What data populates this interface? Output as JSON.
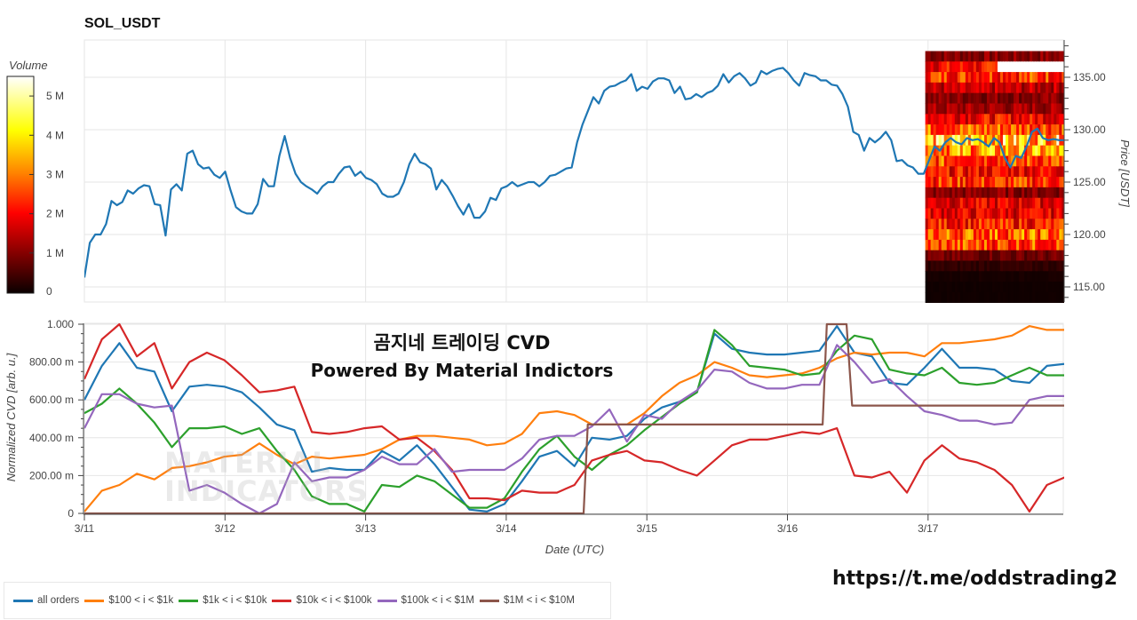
{
  "title": "SOL_USDT",
  "overlay": {
    "line1": "곰지네 트레이딩 CVD",
    "line2": "Powered By Material Indictors"
  },
  "watermark": {
    "line1": "MATERIAL",
    "line2": "INDICATORS"
  },
  "link": "https://t.me/oddstrading2",
  "colors": {
    "all": "#1f77b4",
    "c100": "#ff7f0e",
    "c1k": "#2ca02c",
    "c10k": "#d62728",
    "c100k": "#9467bd",
    "c1m": "#8c564b"
  },
  "chart_data": [
    {
      "type": "line",
      "name": "price",
      "title": "SOL_USDT",
      "ylabel": "Price [USDT]",
      "ylim": [
        113.5,
        139
      ],
      "yticks": [
        "115.00",
        "120.00",
        "125.00",
        "130.00",
        "135.00"
      ],
      "ytick_values": [
        115,
        120,
        125,
        130,
        135
      ],
      "x_range_days": [
        0,
        6.97
      ],
      "prices": [
        115.9,
        119.2,
        120.0,
        120.0,
        121.0,
        123.2,
        122.8,
        123.1,
        124.2,
        123.9,
        124.4,
        124.7,
        124.6,
        122.9,
        122.8,
        119.9,
        124.3,
        124.8,
        124.2,
        127.7,
        128.0,
        126.7,
        126.3,
        126.4,
        125.7,
        125.4,
        126.0,
        124.2,
        122.6,
        122.2,
        122.0,
        122.0,
        122.9,
        125.3,
        124.6,
        124.6,
        127.5,
        129.4,
        127.3,
        125.8,
        125.0,
        124.6,
        124.3,
        123.9,
        124.6,
        125.0,
        125.0,
        125.8,
        126.4,
        126.5,
        125.6,
        126.0,
        125.4,
        125.2,
        124.8,
        123.9,
        123.6,
        123.6,
        123.9,
        125.0,
        126.7,
        127.7,
        126.9,
        126.7,
        126.3,
        124.3,
        125.2,
        124.6,
        123.7,
        122.7,
        121.9,
        122.9,
        121.6,
        121.6,
        122.2,
        123.5,
        123.3,
        124.4,
        124.6,
        125.0,
        124.6,
        124.8,
        125.0,
        125.0,
        124.6,
        125.0,
        125.6,
        125.7,
        126.0,
        126.3,
        126.4,
        128.8,
        130.5,
        131.8,
        133.1,
        132.5,
        133.7,
        134.1,
        134.2,
        134.5,
        134.7,
        135.3,
        133.7,
        134.1,
        133.9,
        134.6,
        134.9,
        134.9,
        134.7,
        133.5,
        134.1,
        132.9,
        133.0,
        133.4,
        133.1,
        133.5,
        133.7,
        134.2,
        135.3,
        134.5,
        135.1,
        135.4,
        134.9,
        134.2,
        134.5,
        135.6,
        135.3,
        135.6,
        135.8,
        135.9,
        135.4,
        134.7,
        134.2,
        135.4,
        135.2,
        135.1,
        134.7,
        134.7,
        134.3,
        134.2,
        133.4,
        132.2,
        129.8,
        129.5,
        128.0,
        129.2,
        128.8,
        129.2,
        129.8,
        129.0,
        127.0,
        127.1,
        126.6,
        126.4,
        125.8,
        125.8,
        127.1,
        128.4,
        128.0,
        128.8,
        129.2,
        128.8,
        128.6,
        129.2,
        129.0,
        129.1,
        128.8,
        128.4,
        129.2,
        128.8,
        127.3,
        126.4,
        127.5,
        127.3,
        128.4,
        129.8,
        130.1,
        129.2,
        129.0,
        129.1,
        129.0,
        129.0
      ]
    },
    {
      "type": "heatmap",
      "name": "volume-profile",
      "colorbar_title": "Volume",
      "colorbar_ticks": [
        "0",
        "1 M",
        "2 M",
        "3 M",
        "4 M",
        "5 M"
      ],
      "colorbar_tick_values": [
        0,
        1,
        2,
        3,
        4,
        5
      ],
      "colorbar_max": 5.5,
      "x_range_days": [
        5.98,
        6.97
      ],
      "row_prices": [
        137,
        136,
        135,
        134,
        133,
        132,
        131,
        130,
        129,
        128,
        127,
        126,
        125,
        124,
        123,
        122,
        121,
        120,
        119,
        118,
        117,
        116,
        115,
        114
      ],
      "row_volumes_m": [
        1.0,
        2.0,
        2.5,
        1.4,
        1.0,
        1.2,
        2.0,
        2.8,
        3.8,
        3.3,
        2.6,
        2.0,
        2.4,
        1.0,
        1.8,
        1.8,
        2.2,
        2.8,
        2.6,
        0.8,
        0.3,
        0.1,
        0.05,
        0.05
      ],
      "hotspot": {
        "price": 136,
        "day_from": 6.5,
        "day_to": 6.97,
        "volume_m": 5.6
      }
    },
    {
      "type": "line",
      "name": "cvd",
      "xlabel": "Date (UTC)",
      "ylabel": "Normalized CVD [arb. u.]",
      "ylim": [
        0,
        1
      ],
      "yticks": [
        "0",
        "200.00 m",
        "400.00 m",
        "600.00 m",
        "800.00 m",
        "1.000"
      ],
      "ytick_values": [
        0,
        0.2,
        0.4,
        0.6,
        0.8,
        1.0
      ],
      "xticks": [
        "3/11",
        "3/12",
        "3/13",
        "3/14",
        "3/15",
        "3/16",
        "3/17"
      ],
      "xtick_days": [
        0,
        1,
        2,
        3,
        4,
        5,
        6
      ],
      "x_range_days": [
        0,
        6.97
      ],
      "legend_position": "bottom-left",
      "series": [
        {
          "name": "all orders",
          "color_key": "all",
          "values": [
            0.6,
            0.78,
            0.9,
            0.77,
            0.75,
            0.54,
            0.67,
            0.68,
            0.67,
            0.64,
            0.56,
            0.47,
            0.44,
            0.22,
            0.24,
            0.23,
            0.23,
            0.33,
            0.28,
            0.36,
            0.26,
            0.14,
            0.02,
            0.01,
            0.05,
            0.17,
            0.3,
            0.33,
            0.25,
            0.4,
            0.39,
            0.41,
            0.5,
            0.56,
            0.59,
            0.64,
            0.95,
            0.87,
            0.85,
            0.84,
            0.84,
            0.85,
            0.86,
            0.99,
            0.85,
            0.83,
            0.69,
            0.68,
            0.77,
            0.87,
            0.77,
            0.77,
            0.76,
            0.7,
            0.69,
            0.78,
            0.79
          ]
        },
        {
          "name": "$100 < i < $1k",
          "color_key": "c100",
          "values": [
            0.01,
            0.12,
            0.15,
            0.21,
            0.18,
            0.24,
            0.25,
            0.27,
            0.3,
            0.31,
            0.37,
            0.31,
            0.26,
            0.3,
            0.29,
            0.3,
            0.31,
            0.34,
            0.39,
            0.41,
            0.41,
            0.4,
            0.39,
            0.36,
            0.37,
            0.42,
            0.53,
            0.54,
            0.52,
            0.47,
            0.47,
            0.47,
            0.53,
            0.62,
            0.69,
            0.73,
            0.8,
            0.77,
            0.73,
            0.72,
            0.73,
            0.74,
            0.77,
            0.82,
            0.85,
            0.84,
            0.85,
            0.85,
            0.83,
            0.9,
            0.9,
            0.91,
            0.92,
            0.94,
            0.99,
            0.97,
            0.97
          ]
        },
        {
          "name": "$1k < i < $10k",
          "color_key": "c1k",
          "values": [
            0.53,
            0.58,
            0.66,
            0.58,
            0.48,
            0.35,
            0.45,
            0.45,
            0.46,
            0.42,
            0.45,
            0.33,
            0.23,
            0.09,
            0.05,
            0.05,
            0.01,
            0.15,
            0.14,
            0.2,
            0.17,
            0.1,
            0.03,
            0.03,
            0.08,
            0.22,
            0.34,
            0.41,
            0.3,
            0.23,
            0.31,
            0.36,
            0.44,
            0.51,
            0.58,
            0.64,
            0.97,
            0.89,
            0.78,
            0.77,
            0.76,
            0.73,
            0.74,
            0.86,
            0.94,
            0.92,
            0.76,
            0.74,
            0.73,
            0.77,
            0.69,
            0.68,
            0.69,
            0.73,
            0.77,
            0.73,
            0.73
          ]
        },
        {
          "name": "$10k < i < $100k",
          "color_key": "c10k",
          "values": [
            0.71,
            0.92,
            1.0,
            0.83,
            0.9,
            0.66,
            0.8,
            0.85,
            0.81,
            0.73,
            0.64,
            0.65,
            0.67,
            0.43,
            0.42,
            0.43,
            0.45,
            0.46,
            0.39,
            0.4,
            0.33,
            0.23,
            0.08,
            0.08,
            0.07,
            0.12,
            0.11,
            0.11,
            0.15,
            0.28,
            0.31,
            0.33,
            0.28,
            0.27,
            0.23,
            0.2,
            0.28,
            0.36,
            0.39,
            0.39,
            0.41,
            0.43,
            0.42,
            0.45,
            0.2,
            0.19,
            0.22,
            0.11,
            0.28,
            0.36,
            0.29,
            0.27,
            0.23,
            0.15,
            0.01,
            0.15,
            0.19
          ]
        },
        {
          "name": "$100k < i < $1M",
          "color_key": "c100k",
          "values": [
            0.45,
            0.63,
            0.63,
            0.58,
            0.56,
            0.57,
            0.12,
            0.15,
            0.11,
            0.05,
            0.0,
            0.05,
            0.27,
            0.17,
            0.19,
            0.19,
            0.23,
            0.3,
            0.26,
            0.26,
            0.34,
            0.22,
            0.23,
            0.23,
            0.23,
            0.29,
            0.39,
            0.41,
            0.41,
            0.46,
            0.55,
            0.38,
            0.52,
            0.5,
            0.59,
            0.65,
            0.76,
            0.75,
            0.69,
            0.66,
            0.66,
            0.68,
            0.68,
            0.89,
            0.8,
            0.69,
            0.71,
            0.62,
            0.54,
            0.52,
            0.49,
            0.49,
            0.47,
            0.48,
            0.6,
            0.62,
            0.62
          ]
        },
        {
          "name": "$1M < i < $10M",
          "color_key": "c1m",
          "points": [
            [
              0,
              0
            ],
            [
              3.55,
              0
            ],
            [
              3.58,
              0.47
            ],
            [
              5.25,
              0.47
            ],
            [
              5.28,
              1.0
            ],
            [
              5.42,
              1.0
            ],
            [
              5.46,
              0.57
            ],
            [
              6.97,
              0.57
            ]
          ]
        }
      ]
    }
  ]
}
